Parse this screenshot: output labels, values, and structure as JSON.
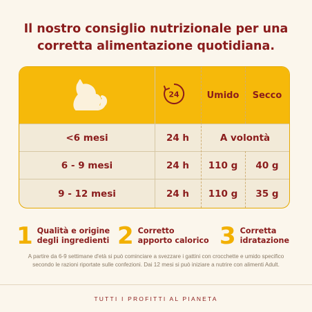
{
  "title": {
    "line1": "Il nostro consiglio nutrizionale per una",
    "line2": "corretta alimentazione quotidiana."
  },
  "table": {
    "header": {
      "clock_label": "24",
      "col_umido": "Umido",
      "col_secco": "Secco"
    },
    "rows": [
      {
        "age": "<6 mesi",
        "time": "24 h",
        "combined": "A volontà"
      },
      {
        "age": "6 - 9 mesi",
        "time": "24 h",
        "umido": "110 g",
        "secco": "40 g"
      },
      {
        "age": "9 - 12 mesi",
        "time": "24 h",
        "umido": "110 g",
        "secco": "35 g"
      }
    ]
  },
  "features": [
    {
      "number": "1",
      "text": "Qualità e origine\ndegli ingredienti"
    },
    {
      "number": "2",
      "text": "Corretto\napporto calorico"
    },
    {
      "number": "3",
      "text": "Corretta\nidratazione"
    }
  ],
  "note": "A partire da 6-9 settimane d'età si può cominciare a svezzare i gattini con crocchette e umido specifico secondo le razioni riportate sulle confezioni. Dai 12 mesi si può iniziare a nutrire con alimenti Adult.",
  "footer": "TUTTI I PROFITTI AL PIANETA",
  "colors": {
    "brand_red": "#8a1c1c",
    "accent_yellow": "#f6b90a",
    "table_bg": "#f2ead8",
    "page_bg": "#fbf6ec"
  },
  "icons": [
    "cat-icon",
    "clock-24-icon"
  ]
}
